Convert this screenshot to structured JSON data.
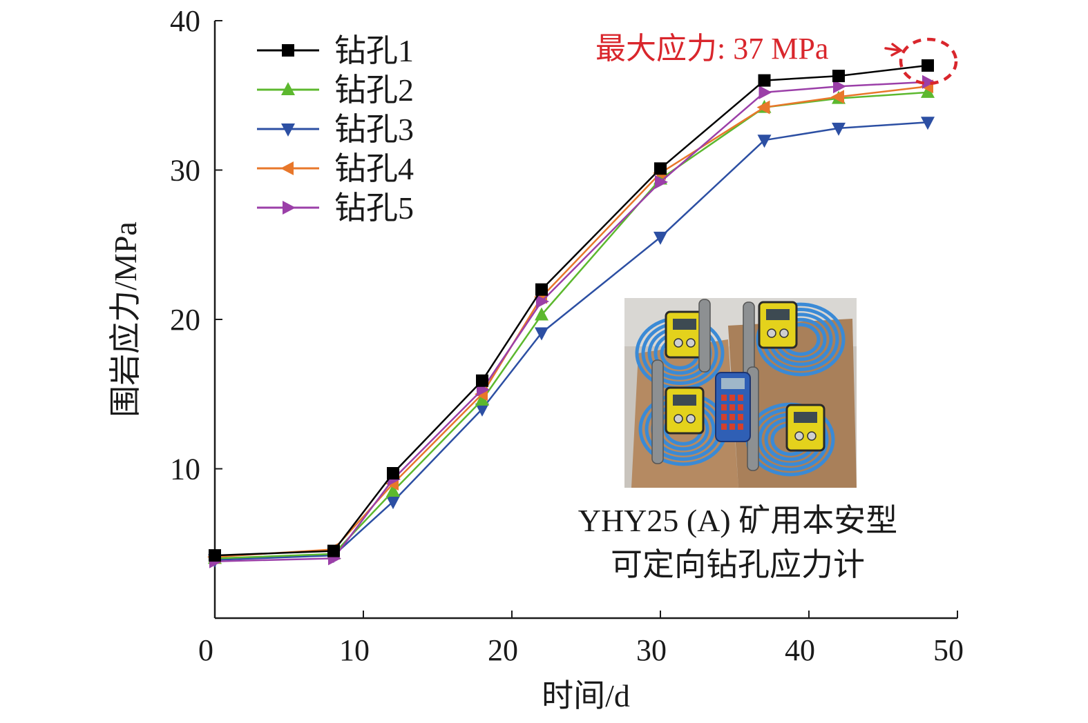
{
  "chart_data": {
    "type": "line",
    "title": "",
    "xlabel": "时间/d",
    "ylabel": "围岩应力/MPa",
    "xlim": [
      0,
      50
    ],
    "ylim": [
      0,
      40
    ],
    "x_ticks": [
      "0",
      "10",
      "20",
      "30",
      "40",
      "50"
    ],
    "y_ticks": [
      "10",
      "20",
      "30",
      "40"
    ],
    "x": [
      0,
      8,
      12,
      18,
      22,
      30,
      37,
      42,
      48
    ],
    "grid": false,
    "legend_position": "top-left",
    "series": [
      {
        "name": "钻孔1",
        "marker": "square",
        "color": "#000000",
        "values": [
          4.2,
          4.5,
          9.7,
          15.9,
          22.0,
          30.1,
          36.0,
          36.3,
          37.0
        ]
      },
      {
        "name": "钻孔2",
        "marker": "triangle-up",
        "color": "#5cb82e",
        "values": [
          4.0,
          4.3,
          8.5,
          14.6,
          20.3,
          29.4,
          34.2,
          34.8,
          35.2
        ]
      },
      {
        "name": "钻孔3",
        "marker": "triangle-down",
        "color": "#2c4fa3",
        "values": [
          3.9,
          4.2,
          7.8,
          14.0,
          19.1,
          25.5,
          32.0,
          32.8,
          33.2
        ]
      },
      {
        "name": "钻孔4",
        "marker": "triangle-left",
        "color": "#e8772a",
        "values": [
          4.1,
          4.6,
          9.0,
          15.0,
          21.5,
          29.8,
          34.2,
          34.9,
          35.6
        ]
      },
      {
        "name": "钻孔5",
        "marker": "triangle-right",
        "color": "#9b3fa8",
        "values": [
          3.8,
          4.0,
          9.3,
          15.3,
          21.2,
          29.2,
          35.2,
          35.6,
          35.9
        ]
      }
    ],
    "annotation": {
      "text": "最大应力: 37 MPa",
      "color": "#d9262c",
      "x": 48,
      "y": 37
    },
    "inset": {
      "caption_line1": "YHY25 (A) 矿用本安型",
      "caption_line2": "可定向钻孔应力计"
    }
  }
}
